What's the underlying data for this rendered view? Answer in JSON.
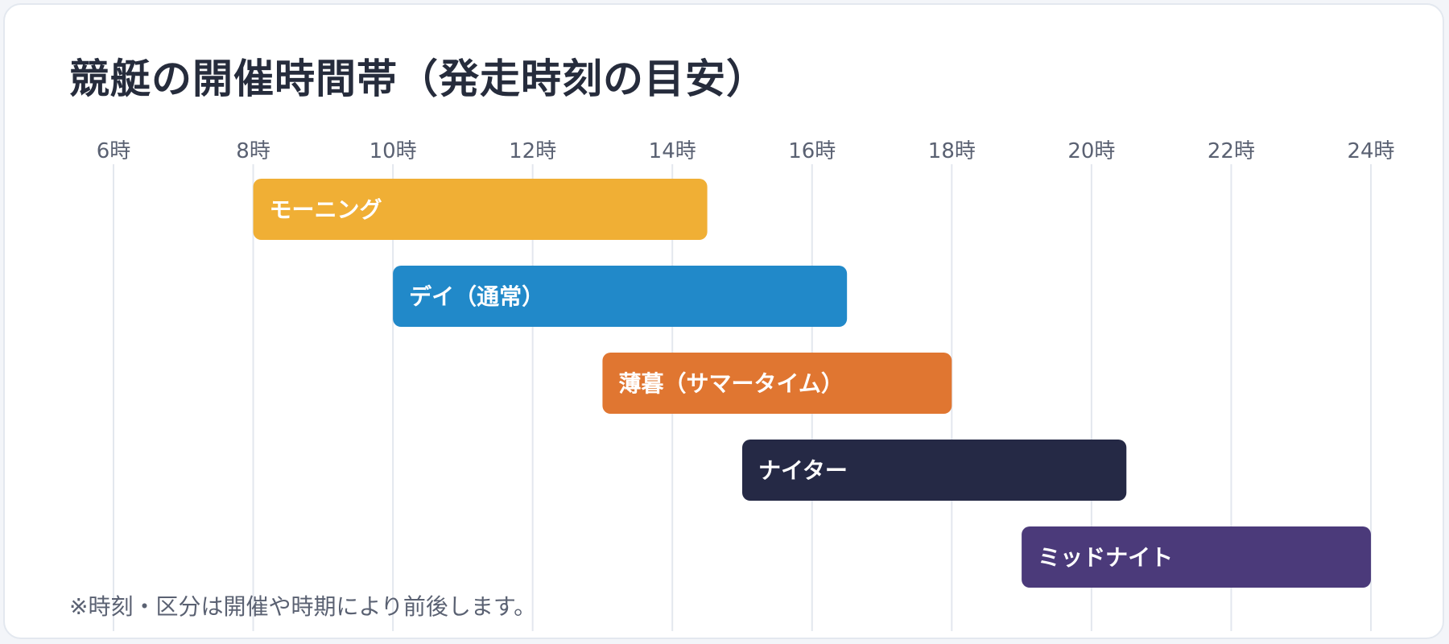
{
  "title": "競艇の開催時間帯（発走時刻の目安）",
  "note": "※時刻・区分は開催や時期により前後します。",
  "chart_data": {
    "type": "bar",
    "orientation": "horizontal-range",
    "x_ticks": [
      {
        "value": 6,
        "label": "6時"
      },
      {
        "value": 8,
        "label": "8時"
      },
      {
        "value": 10,
        "label": "10時"
      },
      {
        "value": 12,
        "label": "12時"
      },
      {
        "value": 14,
        "label": "14時"
      },
      {
        "value": 16,
        "label": "16時"
      },
      {
        "value": 18,
        "label": "18時"
      },
      {
        "value": 20,
        "label": "20時"
      },
      {
        "value": 22,
        "label": "22時"
      },
      {
        "value": 24,
        "label": "24時"
      }
    ],
    "xlim": [
      6,
      24
    ],
    "grid": true,
    "bars": [
      {
        "label": "モーニング",
        "start": 8.0,
        "end": 14.5,
        "color": "#f0af35"
      },
      {
        "label": "デイ（通常）",
        "start": 10.0,
        "end": 16.5,
        "color": "#2189c9"
      },
      {
        "label": "薄暮（サマータイム）",
        "start": 13.0,
        "end": 18.0,
        "color": "#e07631"
      },
      {
        "label": "ナイター",
        "start": 15.0,
        "end": 20.5,
        "color": "#252945"
      },
      {
        "label": "ミッドナイト",
        "start": 19.0,
        "end": 24.0,
        "color": "#4b3a7a"
      }
    ]
  }
}
